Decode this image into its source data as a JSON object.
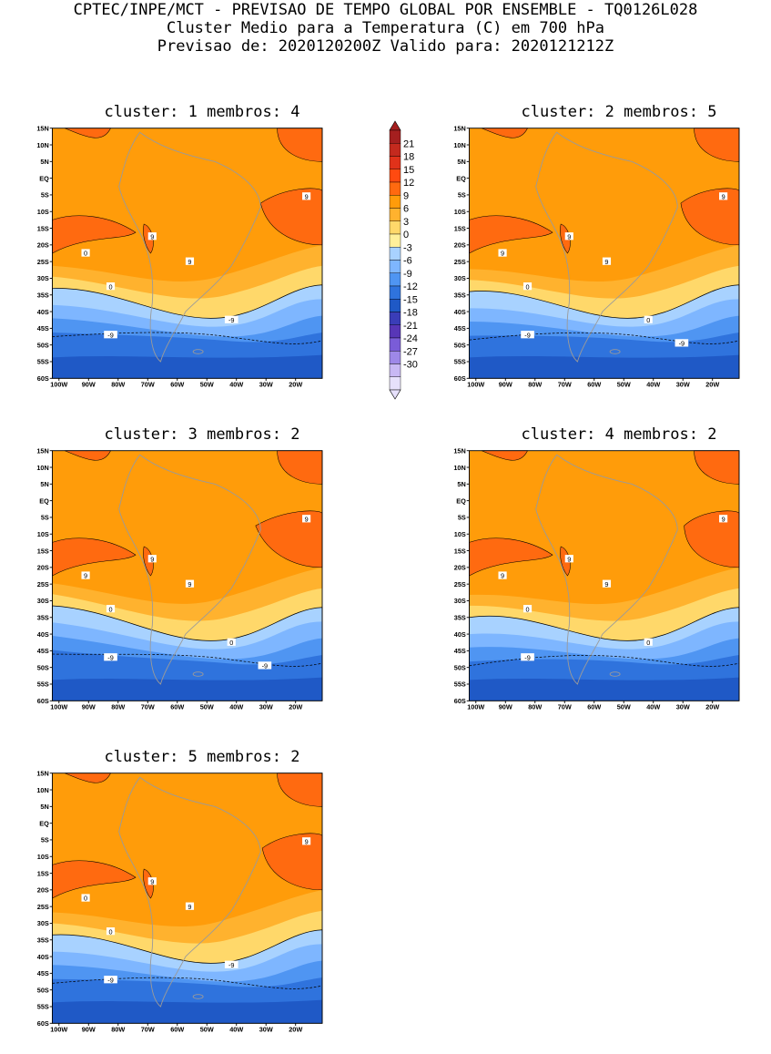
{
  "header": {
    "line1": "CPTEC/INPE/MCT - PREVISAO DE TEMPO GLOBAL POR ENSEMBLE - TQ0126L028",
    "line2": "Cluster Medio para a Temperatura (C) em 700 hPa",
    "line3": "Previsao de: 2020120200Z   Valido para: 2020121212Z"
  },
  "axes": {
    "lat_labels": [
      "15N",
      "10N",
      "5N",
      "EQ",
      "5S",
      "10S",
      "15S",
      "20S",
      "25S",
      "30S",
      "35S",
      "40S",
      "45S",
      "50S",
      "55S",
      "60S"
    ],
    "lon_labels": [
      "100W",
      "90W",
      "80W",
      "70W",
      "60W",
      "50W",
      "40W",
      "30W",
      "20W"
    ]
  },
  "colorbar": {
    "labels": [
      "21",
      "18",
      "15",
      "12",
      "9",
      "6",
      "3",
      "0",
      "-3",
      "-6",
      "-9",
      "-12",
      "-15",
      "-18",
      "-21",
      "-24",
      "-27",
      "-30"
    ],
    "colors": [
      "#a51f1f",
      "#c42a1e",
      "#e0321a",
      "#ff4a10",
      "#ff6a10",
      "#ff9c0a",
      "#ffb22e",
      "#ffd86a",
      "#fff09a",
      "#a8d2ff",
      "#7eb6ff",
      "#4f95f2",
      "#2f73dd",
      "#1f59c6",
      "#3a3db8",
      "#5836b7",
      "#7a5cd8",
      "#9e88e8",
      "#c8b8f4",
      "#e6e0fb"
    ]
  },
  "panels": [
    {
      "title": "cluster: 1   membros: 4",
      "contour_labels": [
        "9",
        "9",
        "9",
        "0",
        "0",
        "-9",
        "-9"
      ]
    },
    {
      "title": "cluster: 2   membros: 5",
      "contour_labels": [
        "9",
        "9",
        "9",
        "9",
        "0",
        "0",
        "-9",
        "-9"
      ]
    },
    {
      "title": "cluster: 3   membros: 2",
      "contour_labels": [
        "9",
        "9",
        "9",
        "9",
        "0",
        "0",
        "-9",
        "-9"
      ]
    },
    {
      "title": "cluster: 4   membros: 2",
      "contour_labels": [
        "9",
        "9",
        "9",
        "9",
        "0",
        "0",
        "-9"
      ]
    },
    {
      "title": "cluster: 5   membros: 2",
      "contour_labels": [
        "9",
        "9",
        "9",
        "0",
        "0",
        "-9",
        "-9"
      ]
    }
  ]
}
